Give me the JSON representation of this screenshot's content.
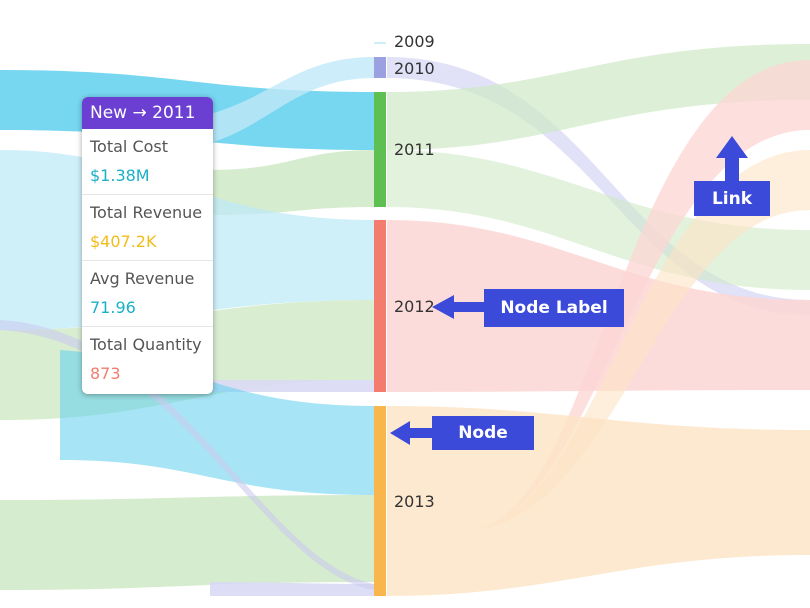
{
  "nodes": [
    {
      "label": "2009",
      "color": "#cfeef5"
    },
    {
      "label": "2010",
      "color": "#9aa0e0"
    },
    {
      "label": "2011",
      "color": "#5ec052"
    },
    {
      "label": "2012",
      "color": "#f47c6e"
    },
    {
      "label": "2013",
      "color": "#f8b64c"
    }
  ],
  "tooltip": {
    "title": "New → 2011",
    "header_color": "#6a3fd2",
    "rows": [
      {
        "label": "Total Cost",
        "value": "$1.38M",
        "color": "#1ab0c8"
      },
      {
        "label": "Total Revenue",
        "value": "$407.2K",
        "color": "#f2bc1a"
      },
      {
        "label": "Avg Revenue",
        "value": "71.96",
        "color": "#1ab0c8"
      },
      {
        "label": "Total Quantity",
        "value": "873",
        "color": "#f47c6e"
      }
    ]
  },
  "callouts": {
    "link": "Link",
    "node_label": "Node Label",
    "node": "Node",
    "color": "#3b4ad8"
  },
  "link_colors": {
    "cyan": "#5fd0ef",
    "lightcyan": "#bfe9f7",
    "green": "#cfe9c6",
    "lavender": "#d9daf5",
    "pink": "#fcd6d3",
    "peach": "#fde3c4"
  }
}
